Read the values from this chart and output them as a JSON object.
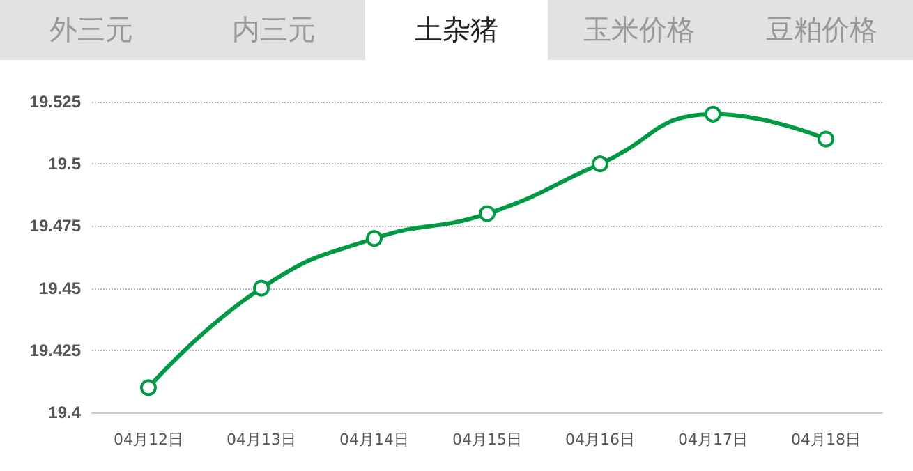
{
  "chart_data": {
    "type": "line",
    "title": "土杂猪",
    "annotations": [
      "外三元",
      "内三元",
      "玉米价格",
      "豆粕价格"
    ],
    "categories": [
      "04月12日",
      "04月13日",
      "04月14日",
      "04月15日",
      "04月16日",
      "04月17日",
      "04月18日"
    ],
    "series": [
      {
        "color": "#009a44",
        "values": [
          19.41,
          19.45,
          19.47,
          19.48,
          19.5,
          19.52,
          19.51
        ]
      }
    ],
    "ylim": [
      19.4,
      19.525
    ],
    "yticks": [
      19.4,
      19.425,
      19.45,
      19.475,
      19.5,
      19.525
    ],
    "grid": "y",
    "marker": "circle",
    "line_style": "solid"
  }
}
